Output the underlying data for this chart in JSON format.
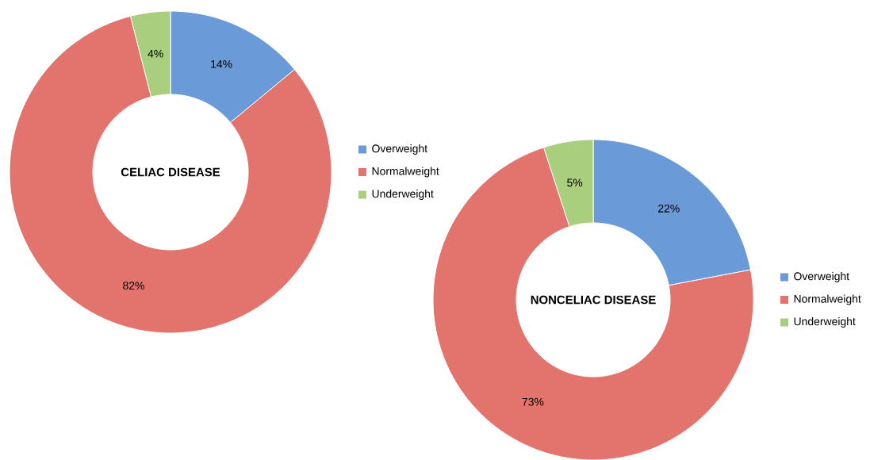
{
  "chart_data": [
    {
      "type": "donut",
      "title": "CELIAC DISEASE",
      "categories": [
        "Overweight",
        "Normalweight",
        "Underweight"
      ],
      "values": [
        14,
        82,
        4
      ],
      "value_labels": [
        "14%",
        "82%",
        "4%"
      ],
      "colors": [
        "#6a9bd8",
        "#e3736d",
        "#a9cf7e"
      ],
      "legend": "right"
    },
    {
      "type": "donut",
      "title": "NONCELIAC DISEASE",
      "categories": [
        "Overweight",
        "Normalweight",
        "Underweight"
      ],
      "values": [
        22,
        73,
        5
      ],
      "value_labels": [
        "22%",
        "73%",
        "5%"
      ],
      "colors": [
        "#6a9bd8",
        "#e3736d",
        "#a9cf7e"
      ],
      "legend": "right"
    }
  ]
}
